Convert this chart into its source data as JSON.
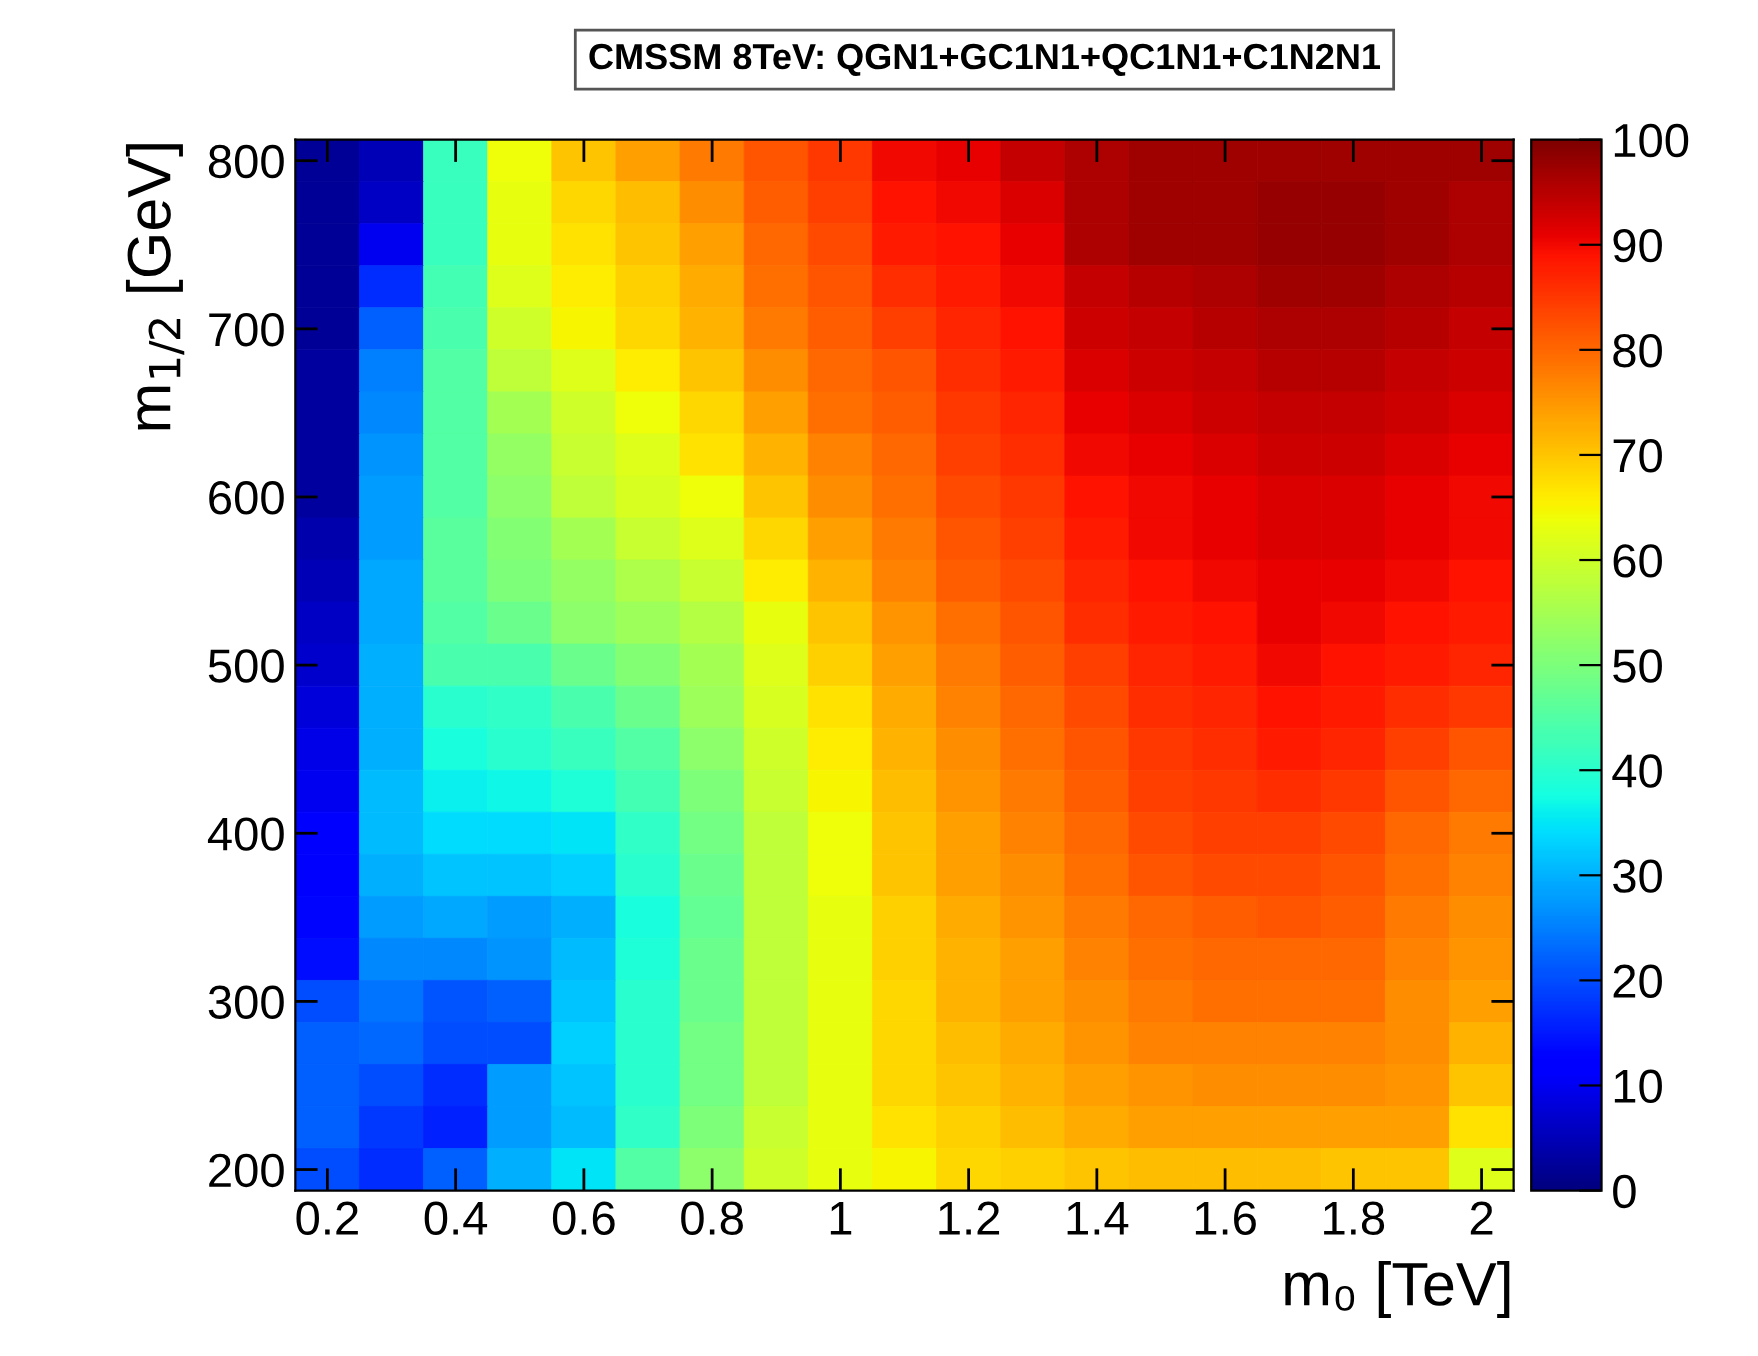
{
  "chart_data": {
    "type": "heatmap",
    "title": "CMSSM 8TeV: QGN1+GC1N1+QC1N1+C1N2N1",
    "xlabel": "m₀ [TeV]",
    "ylabel": "m$_{1/2}$ [GeV]",
    "x": [
      0.2,
      0.3,
      0.4,
      0.5,
      0.6,
      0.7,
      0.8,
      0.9,
      1.0,
      1.1,
      1.2,
      1.3,
      1.4,
      1.5,
      1.6,
      1.7,
      1.8,
      1.9,
      2.0
    ],
    "y": [
      800,
      775,
      750,
      725,
      700,
      675,
      650,
      625,
      600,
      575,
      550,
      525,
      500,
      475,
      450,
      425,
      400,
      375,
      350,
      325,
      300,
      275,
      250,
      225,
      200
    ],
    "xlim": [
      0.15,
      2.05
    ],
    "xticks": [
      0.2,
      0.4,
      0.6,
      0.8,
      1,
      1.2,
      1.4,
      1.6,
      1.8,
      2
    ],
    "ylim": [
      187.5,
      812.5
    ],
    "yticks": [
      200,
      300,
      400,
      500,
      600,
      700,
      800
    ],
    "clim": [
      0,
      100
    ],
    "cticks": [
      0,
      10,
      20,
      30,
      40,
      50,
      60,
      70,
      80,
      90,
      100
    ],
    "cells": [
      [
        2,
        5,
        42,
        64,
        70,
        74,
        78,
        82,
        85,
        90,
        91,
        94,
        96,
        97,
        97,
        97,
        97,
        97,
        97
      ],
      [
        2,
        6,
        42,
        63,
        68,
        71,
        76,
        81,
        84,
        89,
        90,
        92,
        96,
        97,
        97,
        98,
        98,
        97,
        96
      ],
      [
        2,
        10,
        42,
        63,
        67,
        70,
        74,
        80,
        83,
        88,
        89,
        91,
        96,
        97,
        97,
        98,
        98,
        97,
        96
      ],
      [
        2,
        17,
        43,
        62,
        66,
        69,
        73,
        79,
        82,
        86,
        88,
        90,
        94,
        95,
        96,
        97,
        97,
        96,
        95
      ],
      [
        2,
        22,
        44,
        60,
        65,
        68,
        72,
        78,
        81,
        84,
        87,
        89,
        93,
        94,
        95,
        96,
        96,
        95,
        94
      ],
      [
        3,
        25,
        45,
        58,
        62,
        66,
        70,
        76,
        80,
        82,
        86,
        88,
        92,
        93,
        94,
        95,
        95,
        94,
        93
      ],
      [
        3,
        26,
        45,
        55,
        60,
        64,
        68,
        74,
        79,
        81,
        85,
        87,
        91,
        92,
        93,
        94,
        94,
        93,
        92
      ],
      [
        3,
        27,
        45,
        53,
        59,
        62,
        67,
        72,
        77,
        80,
        84,
        86,
        90,
        91,
        92,
        93,
        93,
        92,
        91
      ],
      [
        3,
        28,
        45,
        52,
        58,
        61,
        64,
        70,
        76,
        79,
        83,
        85,
        89,
        90,
        91,
        92,
        92,
        91,
        90
      ],
      [
        4,
        28,
        46,
        51,
        55,
        59,
        62,
        68,
        74,
        78,
        82,
        84,
        88,
        90,
        91,
        92,
        92,
        91,
        90
      ],
      [
        5,
        29,
        46,
        50,
        53,
        56,
        59,
        66,
        72,
        77,
        81,
        83,
        87,
        89,
        90,
        91,
        91,
        90,
        89
      ],
      [
        6,
        29,
        45,
        48,
        52,
        54,
        57,
        63,
        70,
        75,
        79,
        82,
        86,
        88,
        89,
        91,
        90,
        89,
        88
      ],
      [
        7,
        30,
        44,
        44,
        48,
        51,
        55,
        62,
        69,
        74,
        78,
        81,
        84,
        87,
        88,
        90,
        89,
        88,
        87
      ],
      [
        8,
        30,
        40,
        41,
        44,
        48,
        54,
        61,
        67,
        73,
        77,
        80,
        83,
        86,
        87,
        89,
        88,
        86,
        85
      ],
      [
        9,
        30,
        38,
        40,
        42,
        45,
        52,
        60,
        66,
        72,
        76,
        79,
        82,
        85,
        86,
        88,
        87,
        84,
        82
      ],
      [
        10,
        31,
        36,
        37,
        39,
        43,
        50,
        59,
        65,
        71,
        75,
        78,
        81,
        84,
        85,
        86,
        85,
        82,
        80
      ],
      [
        11,
        31,
        34,
        34,
        35,
        41,
        49,
        58,
        64,
        70,
        74,
        77,
        80,
        83,
        84,
        84,
        83,
        80,
        78
      ],
      [
        12,
        30,
        32,
        32,
        33,
        40,
        48,
        58,
        64,
        70,
        74,
        76,
        79,
        82,
        83,
        83,
        82,
        79,
        77
      ],
      [
        13,
        28,
        29,
        28,
        30,
        38,
        47,
        58,
        63,
        69,
        73,
        75,
        78,
        80,
        81,
        82,
        81,
        78,
        76
      ],
      [
        14,
        26,
        26,
        27,
        31,
        39,
        48,
        58,
        63,
        69,
        72,
        74,
        77,
        79,
        80,
        80,
        80,
        77,
        75
      ],
      [
        20,
        24,
        21,
        22,
        32,
        40,
        48,
        58,
        63,
        68,
        72,
        74,
        76,
        78,
        79,
        79,
        79,
        76,
        74
      ],
      [
        22,
        23,
        20,
        20,
        33,
        40,
        49,
        58,
        63,
        68,
        71,
        73,
        75,
        77,
        77,
        77,
        77,
        76,
        72
      ],
      [
        22,
        20,
        17,
        28,
        32,
        40,
        49,
        58,
        63,
        68,
        70,
        72,
        74,
        75,
        76,
        76,
        76,
        75,
        70
      ],
      [
        22,
        18,
        16,
        28,
        31,
        41,
        50,
        59,
        63,
        67,
        69,
        71,
        73,
        74,
        74,
        74,
        74,
        74,
        67
      ],
      [
        20,
        17,
        22,
        30,
        35,
        45,
        52,
        60,
        63,
        65,
        68,
        69,
        70,
        71,
        71,
        71,
        70,
        70,
        62
      ]
    ]
  }
}
